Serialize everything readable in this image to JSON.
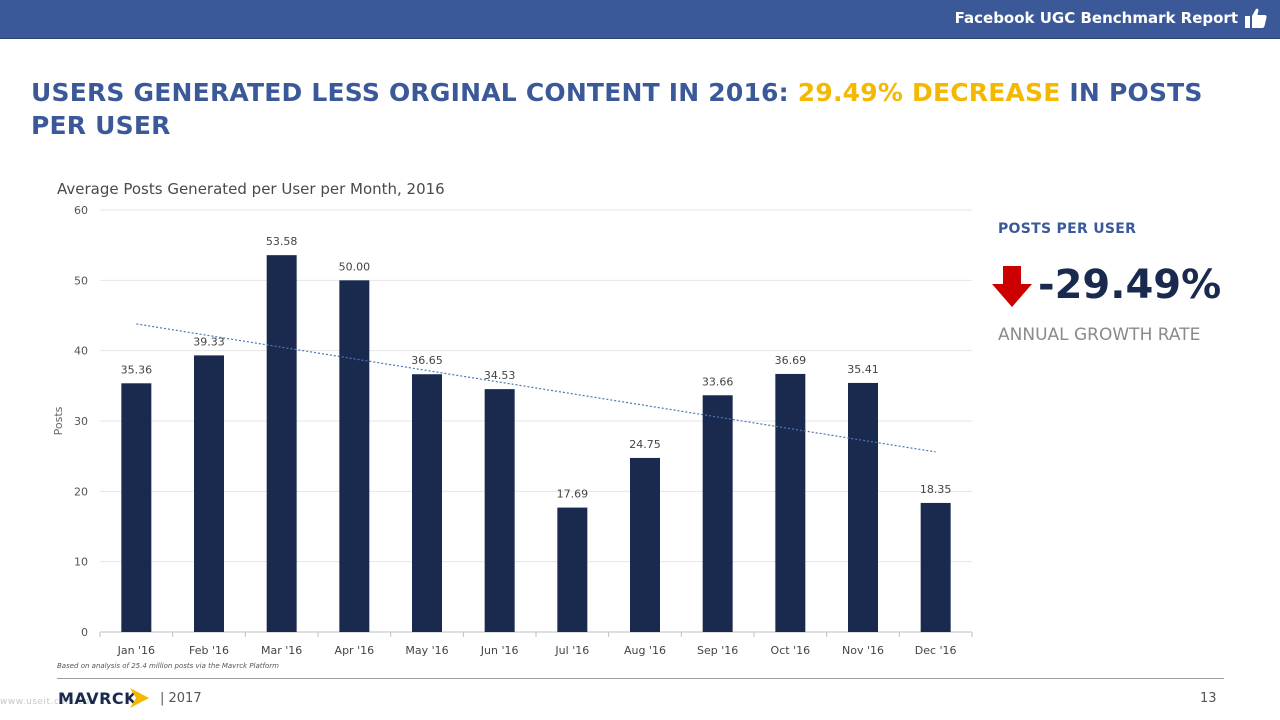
{
  "header": {
    "report_title": "Facebook UGC Benchmark Report",
    "icon": "thumbs-up-icon"
  },
  "headline": {
    "part1": "USERS GENERATED LESS ORGINAL CONTENT IN 2016: ",
    "highlight": "29.49% DECREASE",
    "part2": " IN POSTS PER USER"
  },
  "colors": {
    "header_bg": "#3b5998",
    "headline": "#3b5998",
    "highlight": "#f5b800",
    "bar": "#1a2a4f",
    "trend": "#4a78b8",
    "arrow": "#cc0000"
  },
  "chart_data": {
    "type": "bar",
    "title": "Average Posts Generated per User per Month, 2016",
    "xlabel": "",
    "ylabel": "Posts",
    "ylim": [
      0,
      60
    ],
    "yticks": [
      0,
      10,
      20,
      30,
      40,
      50,
      60
    ],
    "grid": true,
    "categories": [
      "Jan '16",
      "Feb '16",
      "Mar '16",
      "Apr '16",
      "May '16",
      "Jun '16",
      "Jul '16",
      "Aug '16",
      "Sep '16",
      "Oct '16",
      "Nov '16",
      "Dec '16"
    ],
    "values": [
      35.36,
      39.33,
      53.58,
      50.0,
      36.65,
      34.53,
      17.69,
      24.75,
      33.66,
      36.69,
      35.41,
      18.35
    ],
    "data_labels": [
      "35.36",
      "39.33",
      "53.58",
      "50.00",
      "36.65",
      "34.53",
      "17.69",
      "24.75",
      "33.66",
      "36.69",
      "35.41",
      "18.35"
    ],
    "trendline": {
      "type": "linear",
      "style": "dotted",
      "start_value": 43.8,
      "end_value": 25.6
    }
  },
  "kpi": {
    "label": "POSTS PER USER",
    "value": "-29.49%",
    "sublabel": "ANNUAL GROWTH RATE",
    "icon": "down-arrow-icon"
  },
  "footer": {
    "note": "Based on analysis of 25.4 million posts via the Mavrck Platform",
    "logo_text": "MAVRCK",
    "year": "|  2017",
    "page": "13",
    "watermark": "www.useit.com.cn"
  }
}
